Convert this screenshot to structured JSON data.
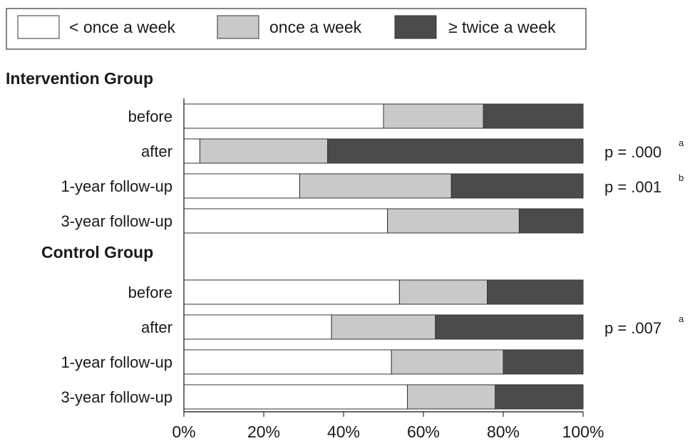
{
  "chart_data": {
    "type": "bar",
    "stacked": true,
    "orientation": "horizontal",
    "legend": {
      "placement": "top",
      "entries": [
        {
          "label": "< once a week",
          "color": "#ffffff"
        },
        {
          "label": "once a week",
          "color": "#c9c9c9"
        },
        {
          "label": "≥ twice a week",
          "color": "#4b4b4b"
        }
      ]
    },
    "xlim": [
      0,
      100
    ],
    "x_ticks": [
      "0%",
      "20%",
      "40%",
      "60%",
      "80%",
      "100%"
    ],
    "groups": [
      {
        "title": "Intervention Group",
        "rows": [
          {
            "label": "before",
            "values": [
              50,
              25,
              25
            ],
            "p_value": "",
            "p_note": ""
          },
          {
            "label": "after",
            "values": [
              4,
              32,
              64
            ],
            "p_value": "p = .000",
            "p_note": "a"
          },
          {
            "label": "1-year follow-up",
            "values": [
              29,
              38,
              33
            ],
            "p_value": "p = .001",
            "p_note": "b"
          },
          {
            "label": "3-year follow-up",
            "values": [
              51,
              33,
              16
            ],
            "p_value": "",
            "p_note": ""
          }
        ]
      },
      {
        "title": "Control Group",
        "rows": [
          {
            "label": "before",
            "values": [
              54,
              22,
              24
            ],
            "p_value": "",
            "p_note": ""
          },
          {
            "label": "after",
            "values": [
              37,
              26,
              37
            ],
            "p_value": "p = .007",
            "p_note": "a"
          },
          {
            "label": "1-year follow-up",
            "values": [
              52,
              28,
              20
            ],
            "p_value": "",
            "p_note": ""
          },
          {
            "label": "3-year follow-up",
            "values": [
              56,
              22,
              22
            ],
            "p_value": "",
            "p_note": ""
          }
        ]
      }
    ]
  }
}
